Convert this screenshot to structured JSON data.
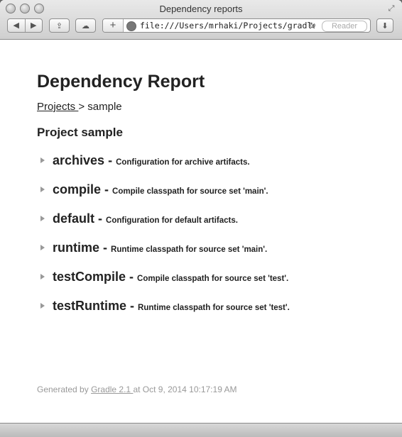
{
  "window": {
    "title": "Dependency reports"
  },
  "toolbar": {
    "url": "file:///Users/mrhaki/Projects/gradle-de",
    "reader_label": "Reader"
  },
  "report": {
    "title": "Dependency Report",
    "breadcrumb": {
      "link": "Projects ",
      "separator": "> ",
      "current": "sample"
    },
    "project_heading": "Project sample",
    "configurations": [
      {
        "name": "archives",
        "separator": "-",
        "description": "Configuration for archive artifacts."
      },
      {
        "name": "compile",
        "separator": "-",
        "description": "Compile classpath for source set 'main'."
      },
      {
        "name": "default",
        "separator": "-",
        "description": "Configuration for default artifacts."
      },
      {
        "name": "runtime",
        "separator": "-",
        "description": "Runtime classpath for source set 'main'."
      },
      {
        "name": "testCompile",
        "separator": "-",
        "description": "Compile classpath for source set 'test'."
      },
      {
        "name": "testRuntime",
        "separator": "-",
        "description": "Runtime classpath for source set 'test'."
      }
    ],
    "footer": {
      "prefix": "Generated by ",
      "link": "Gradle 2.1 ",
      "suffix": "at Oct 9, 2014 10:17:19 AM"
    }
  },
  "icons": [
    "back-icon",
    "forward-icon",
    "share-icon",
    "cloud-icon",
    "add-icon",
    "globe-icon",
    "reload-icon",
    "download-icon",
    "fullscreen-icon",
    "disclosure-triangle-icon"
  ]
}
